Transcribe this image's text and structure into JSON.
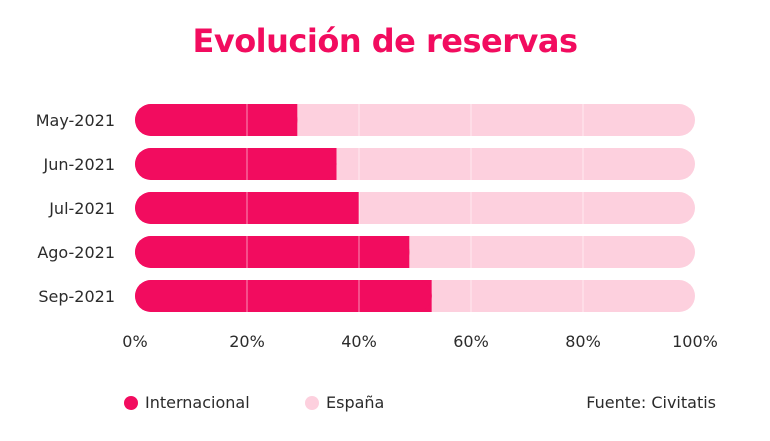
{
  "chart_data": {
    "type": "bar",
    "orientation": "horizontal",
    "stacked": true,
    "title": "Evolución de reservas",
    "categories": [
      "May-2021",
      "Jun-2021",
      "Jul-2021",
      "Ago-2021",
      "Sep-2021"
    ],
    "series": [
      {
        "name": "Internacional",
        "color": "#f20c5f",
        "values": [
          29,
          36,
          40,
          49,
          53
        ]
      },
      {
        "name": "España",
        "color": "#fdd0de",
        "values": [
          71,
          64,
          60,
          51,
          47
        ]
      }
    ],
    "xlim": [
      0,
      100
    ],
    "xticks": [
      "0%",
      "20%",
      "40%",
      "60%",
      "80%",
      "100%"
    ],
    "grid": true,
    "legend_position": "bottom-left",
    "source": "Fuente: Civitatis"
  }
}
